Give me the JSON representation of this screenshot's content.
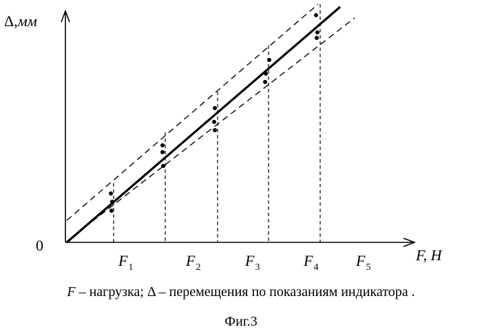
{
  "axes": {
    "y_label_symbol": "Δ,",
    "y_label_unit": "мм",
    "x_label": "F, H",
    "origin": "0"
  },
  "ticks": [
    {
      "letter": "F",
      "index": "1"
    },
    {
      "letter": "F",
      "index": "2"
    },
    {
      "letter": "F",
      "index": "3"
    },
    {
      "letter": "F",
      "index": "4"
    },
    {
      "letter": "F",
      "index": "5"
    }
  ],
  "legend": {
    "f_symbol": "F",
    "f_text": " – нагрузка; ",
    "delta_symbol": "Δ",
    "delta_text": " – перемещения  по показаниям индикатора ."
  },
  "figure_caption": "Фиг.3",
  "colors": {
    "ink": "#000000",
    "background": "#ffffff"
  }
}
